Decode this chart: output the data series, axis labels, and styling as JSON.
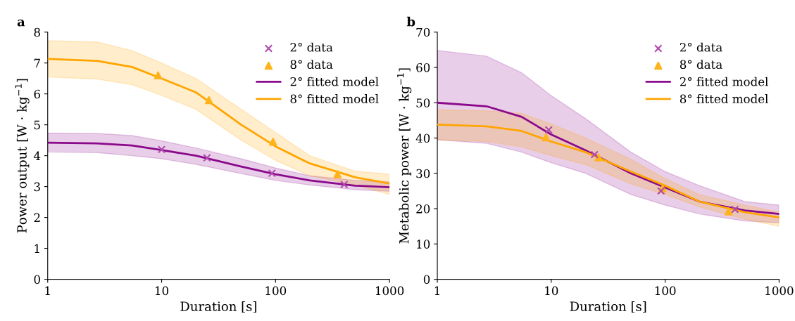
{
  "chart_data": [
    {
      "type": "line",
      "title": "a",
      "xlabel": "Duration [s]",
      "ylabel": "Power output [W · kg$^{−1}$]",
      "log": "x",
      "xlim": [
        1,
        1000
      ],
      "xticks": [
        1,
        10,
        100,
        1000
      ],
      "ylim": [
        0,
        8
      ],
      "yticks": [
        0,
        1,
        2,
        3,
        4,
        5,
        6,
        7,
        8
      ],
      "grid": false,
      "legend": "top right",
      "series": [
        {
          "name": "2° data",
          "type": "scatter",
          "marker": "cross",
          "color": "#b04aae",
          "x": [
            10,
            25,
            93,
            400
          ],
          "values": [
            4.2,
            3.93,
            3.43,
            3.07
          ]
        },
        {
          "name": "8° data",
          "type": "scatter",
          "marker": "triangle",
          "color": "#ffb31a",
          "x": [
            9.3,
            26,
            95,
            350
          ],
          "values": [
            6.6,
            5.8,
            4.45,
            3.4
          ]
        },
        {
          "name": "2° fitted model",
          "type": "line",
          "color": "#8b0a8b",
          "x": [
            1,
            2.7,
            5.5,
            10,
            20,
            50,
            100,
            200,
            500,
            1000
          ],
          "values": [
            4.42,
            4.4,
            4.33,
            4.18,
            4.0,
            3.65,
            3.4,
            3.2,
            3.03,
            2.98
          ],
          "lower": [
            4.12,
            4.1,
            4.0,
            3.9,
            3.72,
            3.42,
            3.2,
            3.05,
            2.9,
            2.85
          ],
          "upper": [
            4.73,
            4.72,
            4.65,
            4.48,
            4.25,
            3.9,
            3.6,
            3.35,
            3.2,
            3.15
          ]
        },
        {
          "name": "8° fitted model",
          "type": "line",
          "color": "#ffa500",
          "x": [
            1,
            2.7,
            5.5,
            10,
            20,
            50,
            100,
            200,
            500,
            1000
          ],
          "values": [
            7.13,
            7.07,
            6.87,
            6.5,
            6.05,
            5.0,
            4.3,
            3.75,
            3.3,
            3.1
          ],
          "lower": [
            6.55,
            6.48,
            6.3,
            5.95,
            5.5,
            4.5,
            3.85,
            3.35,
            3.05,
            2.75
          ],
          "upper": [
            7.72,
            7.68,
            7.4,
            7.0,
            6.5,
            5.5,
            4.75,
            4.0,
            3.5,
            3.4
          ]
        }
      ]
    },
    {
      "type": "line",
      "title": "b",
      "xlabel": "Duration [s]",
      "ylabel": "Metabolic power [W · kg$^{−1}$]",
      "log": "x",
      "xlim": [
        1,
        1000
      ],
      "xticks": [
        1,
        10,
        100,
        1000
      ],
      "ylim": [
        0,
        70
      ],
      "yticks": [
        0,
        10,
        20,
        30,
        40,
        50,
        60,
        70
      ],
      "grid": false,
      "legend": "top right",
      "series": [
        {
          "name": "2° data",
          "type": "scatter",
          "marker": "cross",
          "color": "#b04aae",
          "x": [
            9.5,
            24,
            92,
            410
          ],
          "values": [
            42.3,
            35.3,
            25,
            19.8
          ]
        },
        {
          "name": "8° data",
          "type": "scatter",
          "marker": "triangle",
          "color": "#ffb31a",
          "x": [
            9,
            26,
            95,
            360
          ],
          "values": [
            40.2,
            34.5,
            25.7,
            19.2
          ]
        },
        {
          "name": "2° fitted model",
          "type": "line",
          "color": "#8b0a8b",
          "x": [
            1,
            2.7,
            5.5,
            10,
            20,
            50,
            100,
            200,
            500,
            1000
          ],
          "values": [
            50,
            49,
            46,
            41,
            36.5,
            30,
            26,
            22,
            19.5,
            18.5
          ],
          "lower": [
            39.5,
            38.5,
            36,
            33,
            30,
            24,
            21,
            18.5,
            16.5,
            16
          ],
          "upper": [
            64.8,
            63.2,
            58.5,
            52,
            45.5,
            36,
            30.5,
            26.5,
            22,
            21
          ]
        },
        {
          "name": "8° fitted model",
          "type": "line",
          "color": "#ffa500",
          "x": [
            1,
            2.7,
            5.5,
            10,
            20,
            50,
            100,
            200,
            500,
            1000
          ],
          "values": [
            43.8,
            43.3,
            42,
            39,
            36,
            30.5,
            26.5,
            22,
            19,
            17.5
          ],
          "lower": [
            39.5,
            39,
            37.5,
            35,
            32.5,
            27,
            24,
            20.5,
            17,
            15
          ],
          "upper": [
            48,
            47.7,
            47,
            44,
            40,
            34,
            28.5,
            24,
            21,
            19
          ]
        }
      ]
    }
  ]
}
